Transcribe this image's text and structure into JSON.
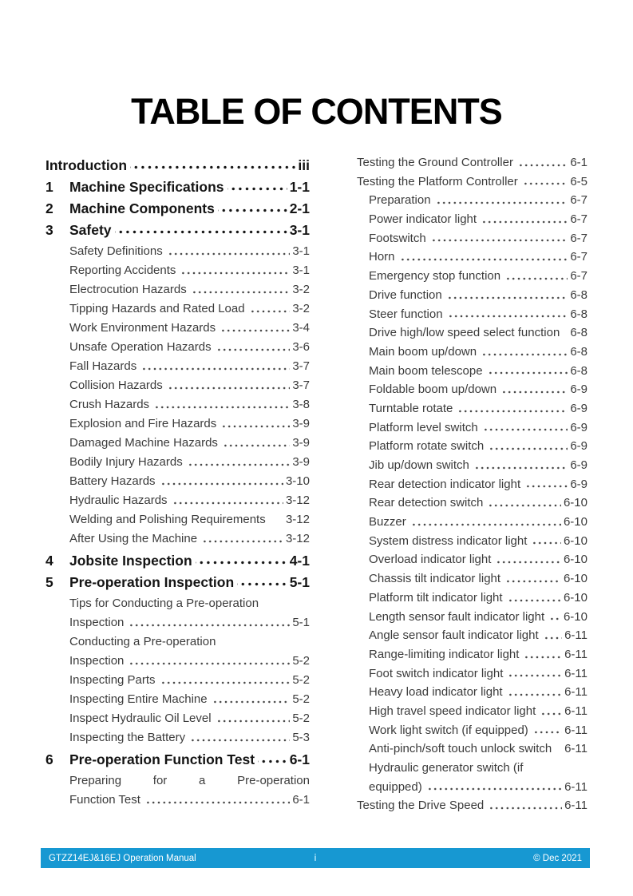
{
  "page_title": "TABLE OF CONTENTS",
  "toc": {
    "left_column": [
      {
        "label": "Introduction",
        "page": "iii",
        "level": 1
      },
      {
        "num": "1",
        "label": "Machine Specifications",
        "page": "1-1",
        "level": 1
      },
      {
        "num": "2",
        "label": "Machine Components",
        "page": "2-1",
        "level": 1
      },
      {
        "num": "3",
        "label": "Safety",
        "page": "3-1",
        "level": 1
      },
      {
        "label": "Safety Definitions",
        "page": "3-1",
        "level": 2
      },
      {
        "label": "Reporting Accidents",
        "page": "3-1",
        "level": 2
      },
      {
        "label": "Electrocution Hazards",
        "page": "3-2",
        "level": 2
      },
      {
        "label": "Tipping Hazards and Rated Load",
        "page": "3-2",
        "level": 2
      },
      {
        "label": "Work Environment Hazards",
        "page": "3-4",
        "level": 2
      },
      {
        "label": "Unsafe Operation Hazards",
        "page": "3-6",
        "level": 2
      },
      {
        "label": "Fall Hazards",
        "page": "3-7",
        "level": 2
      },
      {
        "label": "Collision Hazards",
        "page": "3-7",
        "level": 2
      },
      {
        "label": "Crush Hazards",
        "page": "3-8",
        "level": 2
      },
      {
        "label": "Explosion and Fire Hazards",
        "page": "3-9",
        "level": 2
      },
      {
        "label": "Damaged Machine Hazards",
        "page": "3-9",
        "level": 2
      },
      {
        "label": "Bodily Injury Hazards",
        "page": "3-9",
        "level": 2
      },
      {
        "label": "Battery Hazards",
        "page": "3-10",
        "level": 2
      },
      {
        "label": "Hydraulic Hazards",
        "page": "3-12",
        "level": 2
      },
      {
        "label": "Welding and Polishing Requirements",
        "page": "3-12",
        "level": 2,
        "dots": false
      },
      {
        "label": "After Using the Machine",
        "page": "3-12",
        "level": 2
      },
      {
        "num": "4",
        "label": "Jobsite Inspection",
        "page": "4-1",
        "level": 1
      },
      {
        "num": "5",
        "label": "Pre-operation Inspection",
        "page": "5-1",
        "level": 1
      },
      {
        "label": "Tips for Conducting a Pre-operation",
        "page": "",
        "level": 2,
        "dots": false
      },
      {
        "label": "Inspection",
        "page": "5-1",
        "level": 2
      },
      {
        "label": "Conducting a Pre-operation",
        "page": "",
        "level": 2,
        "dots": false
      },
      {
        "label": "Inspection",
        "page": "5-2",
        "level": 2
      },
      {
        "label": "Inspecting Parts",
        "page": "5-2",
        "level": 2
      },
      {
        "label": "Inspecting Entire Machine",
        "page": "5-2",
        "level": 2
      },
      {
        "label": "Inspect Hydraulic Oil Level",
        "page": "5-2",
        "level": 2
      },
      {
        "label": "Inspecting the Battery",
        "page": "5-3",
        "level": 2
      },
      {
        "num": "6",
        "label": "Pre-operation Function Test",
        "page": "6-1",
        "level": 1
      },
      {
        "label": "Preparing for a Pre-operation",
        "page": "",
        "level": 2,
        "dots": false,
        "justify": true
      },
      {
        "label": "Function Test",
        "page": "6-1",
        "level": 2
      }
    ],
    "right_column": [
      {
        "label": "Testing the Ground Controller",
        "page": "6-1",
        "level": 2
      },
      {
        "label": "Testing the Platform Controller",
        "page": "6-5",
        "level": 2
      },
      {
        "label": "Preparation",
        "page": "6-7",
        "level": 3
      },
      {
        "label": "Power indicator light",
        "page": "6-7",
        "level": 3
      },
      {
        "label": "Footswitch",
        "page": "6-7",
        "level": 3
      },
      {
        "label": "Horn",
        "page": "6-7",
        "level": 3
      },
      {
        "label": "Emergency stop function",
        "page": "6-7",
        "level": 3
      },
      {
        "label": "Drive function",
        "page": "6-8",
        "level": 3
      },
      {
        "label": "Steer function",
        "page": "6-8",
        "level": 3
      },
      {
        "label": "Drive high/low speed select function",
        "page": "6-8",
        "level": 3,
        "dots": false
      },
      {
        "label": "Main boom up/down",
        "page": "6-8",
        "level": 3
      },
      {
        "label": "Main boom telescope",
        "page": "6-8",
        "level": 3
      },
      {
        "label": "Foldable boom up/down",
        "page": "6-9",
        "level": 3
      },
      {
        "label": "Turntable rotate",
        "page": "6-9",
        "level": 3
      },
      {
        "label": "Platform level switch",
        "page": "6-9",
        "level": 3
      },
      {
        "label": "Platform rotate switch",
        "page": "6-9",
        "level": 3
      },
      {
        "label": "Jib up/down switch",
        "page": "6-9",
        "level": 3
      },
      {
        "label": "Rear detection indicator light",
        "page": "6-9",
        "level": 3
      },
      {
        "label": "Rear detection switch",
        "page": "6-10",
        "level": 3
      },
      {
        "label": "Buzzer",
        "page": "6-10",
        "level": 3
      },
      {
        "label": "System distress indicator light",
        "page": "6-10",
        "level": 3
      },
      {
        "label": "Overload indicator light",
        "page": "6-10",
        "level": 3
      },
      {
        "label": "Chassis tilt indicator light",
        "page": "6-10",
        "level": 3
      },
      {
        "label": "Platform tilt indicator light",
        "page": "6-10",
        "level": 3
      },
      {
        "label": "Length sensor fault indicator light",
        "page": "6-10",
        "level": 3
      },
      {
        "label": "Angle sensor fault indicator light",
        "page": "6-11",
        "level": 3
      },
      {
        "label": "Range-limiting indicator light",
        "page": "6-11",
        "level": 3
      },
      {
        "label": "Foot switch indicator light",
        "page": "6-11",
        "level": 3
      },
      {
        "label": "Heavy load indicator light",
        "page": "6-11",
        "level": 3
      },
      {
        "label": "High travel speed indicator light",
        "page": "6-11",
        "level": 3
      },
      {
        "label": "Work light switch (if equipped)",
        "page": "6-11",
        "level": 3
      },
      {
        "label": "Anti-pinch/soft touch unlock switch",
        "page": "6-11",
        "level": 3,
        "dots": false
      },
      {
        "label": "Hydraulic generator switch (if",
        "page": "",
        "level": 3,
        "dots": false
      },
      {
        "label": "equipped)",
        "page": "6-11",
        "level": 3
      },
      {
        "label": "Testing the Drive Speed",
        "page": "6-11",
        "level": 2
      }
    ]
  },
  "footer": {
    "manual_title": "GTZZ14EJ&16EJ Operation Manual",
    "page_number": "i",
    "copyright": "© Dec 2021",
    "bar_color": "#1798d2",
    "text_color": "#ffffff",
    "page_number_color": "#a9dff5"
  },
  "colors": {
    "body_text": "#3b3b3b",
    "heading_text": "#000000",
    "background": "#ffffff"
  }
}
